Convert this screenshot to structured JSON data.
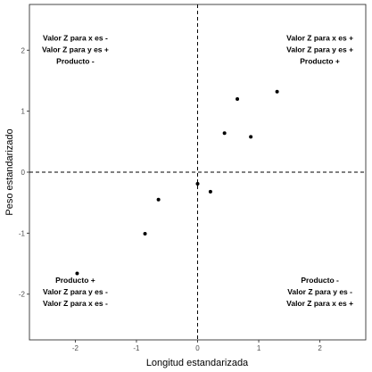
{
  "chart_data": {
    "type": "scatter",
    "title": "",
    "xlabel": "Longitud estandarizada",
    "ylabel": "Peso estandarizado",
    "xlim": [
      -2.75,
      2.75
    ],
    "ylim": [
      -2.75,
      2.75
    ],
    "xticks": [
      "-2",
      "-1",
      "0",
      "1",
      "2"
    ],
    "yticks": [
      "-2",
      "-1",
      "0",
      "1",
      "2"
    ],
    "grid": false,
    "reference_lines": [
      {
        "axis": "x",
        "value": 0,
        "style": "dashed"
      },
      {
        "axis": "y",
        "value": 0,
        "style": "dashed"
      }
    ],
    "points": [
      {
        "x": -1.97,
        "y": -1.66
      },
      {
        "x": -0.86,
        "y": -1.01
      },
      {
        "x": -0.64,
        "y": -0.45
      },
      {
        "x": 0.0,
        "y": -0.19
      },
      {
        "x": 0.21,
        "y": -0.32
      },
      {
        "x": 0.44,
        "y": 0.64
      },
      {
        "x": 0.65,
        "y": 1.2
      },
      {
        "x": 0.87,
        "y": 0.58
      },
      {
        "x": 1.3,
        "y": 1.32
      }
    ],
    "annotations": {
      "top_left": [
        "Valor Z para x es -",
        "Valor Z para y es +",
        "Producto -"
      ],
      "top_right": [
        "Valor Z para x es +",
        "Valor Z para y es +",
        "Producto +"
      ],
      "bottom_left": [
        "Producto +",
        "Valor Z para y es -",
        "Valor Z para x es -"
      ],
      "bottom_right": [
        "Producto -",
        "Valor Z para y es -",
        "Valor Z para x es +"
      ]
    }
  }
}
